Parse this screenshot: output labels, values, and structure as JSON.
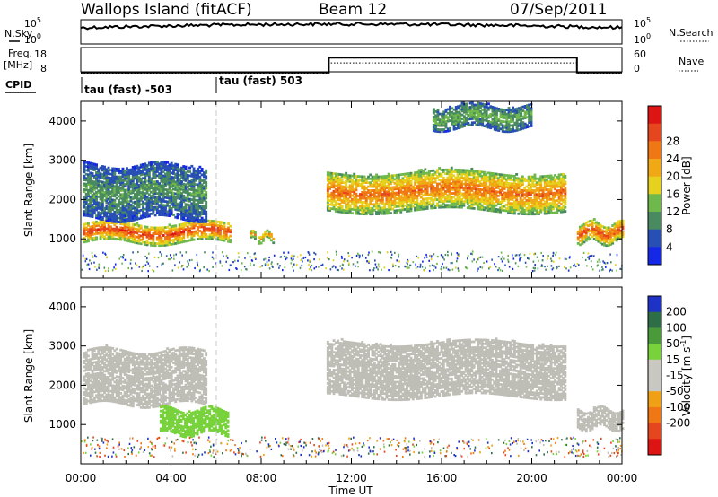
{
  "header": {
    "title": "Wallops Island (fitACF)",
    "beam": "Beam 12",
    "date": "07/Sep/2011"
  },
  "status_panels": {
    "nsky_label": "N.Sky",
    "nsearch_label": "N.Search",
    "noise_ticks": [
      "10^5",
      "10^0"
    ],
    "freq_label_line1": "Freq.",
    "freq_label_line2": "[MHz]",
    "freq_ticks": [
      "18",
      "8"
    ],
    "nave_label": "Nave",
    "nave_ticks": [
      "60",
      "0"
    ],
    "cpid_label": "CPID",
    "cpid_segments": [
      {
        "label": "tau (fast) -503",
        "start_hour": 0
      },
      {
        "label": "tau (fast) 503",
        "start_hour": 6
      }
    ]
  },
  "chart_data": [
    {
      "type": "heatmap",
      "panel": "power",
      "ylabel": "Slant Range [km]",
      "xlabel": "Time UT",
      "xlim_hours": [
        0,
        24
      ],
      "x_tick_labels": [
        "00:00",
        "04:00",
        "08:00",
        "12:00",
        "16:00",
        "20:00",
        "00:00"
      ],
      "ylim_km": [
        0,
        4500
      ],
      "y_ticks": [
        1000,
        2000,
        3000,
        4000
      ],
      "colorbar": {
        "label": "Power [dB]",
        "ticks": [
          "4",
          "8",
          "12",
          "16",
          "20",
          "24",
          "28"
        ],
        "colors": [
          "#1428e6",
          "#2850b4",
          "#4a8a60",
          "#6fb84c",
          "#e6d21e",
          "#f0a814",
          "#f07814",
          "#e6461e",
          "#dc1414"
        ]
      },
      "echo_regions": [
        {
          "t_start": 0.1,
          "t_end": 6.6,
          "range_km": [
            900,
            1400
          ],
          "power_db": 27
        },
        {
          "t_start": 7.5,
          "t_end": 8.5,
          "range_km": [
            950,
            1150
          ],
          "power_db": 22
        },
        {
          "t_start": 0.1,
          "t_end": 5.5,
          "range_km": [
            1500,
            2900
          ],
          "power_db": 10
        },
        {
          "t_start": 10.9,
          "t_end": 21.5,
          "range_km": [
            1700,
            2700
          ],
          "power_db": 24
        },
        {
          "t_start": 15.6,
          "t_end": 20.0,
          "range_km": [
            3800,
            4400
          ],
          "power_db": 12
        },
        {
          "t_start": 22.0,
          "t_end": 24.0,
          "range_km": [
            900,
            1400
          ],
          "power_db": 26
        }
      ]
    },
    {
      "type": "heatmap",
      "panel": "velocity",
      "ylabel": "Slant Range [km]",
      "xlabel": "Time UT",
      "xlim_hours": [
        0,
        24
      ],
      "x_tick_labels": [
        "00:00",
        "04:00",
        "08:00",
        "12:00",
        "16:00",
        "20:00",
        "00:00"
      ],
      "ylim_km": [
        0,
        4500
      ],
      "y_ticks": [
        1000,
        2000,
        3000,
        4000
      ],
      "colorbar": {
        "label": "Velocity [m s^-1]",
        "ticks": [
          "200",
          "100",
          "50",
          "15",
          "-15",
          "-50",
          "-100",
          "-200"
        ],
        "colors": [
          "#1e32c8",
          "#2e6e46",
          "#4a9a3c",
          "#78d23c",
          "#c8c8c0",
          "#c8c8c0",
          "#f0a014",
          "#f07814",
          "#e6461e",
          "#dc1414"
        ]
      },
      "ground_scatter_color": "#bebeb6",
      "echo_regions": [
        {
          "t_start": 0.1,
          "t_end": 5.5,
          "range_km": [
            1500,
            2900
          ],
          "velocity": 0
        },
        {
          "t_start": 3.5,
          "t_end": 6.5,
          "range_km": [
            750,
            1400
          ],
          "velocity": 35
        },
        {
          "t_start": 10.9,
          "t_end": 21.5,
          "range_km": [
            1700,
            3100
          ],
          "velocity": 0
        },
        {
          "t_start": 22.0,
          "t_end": 24.0,
          "range_km": [
            900,
            1400
          ],
          "velocity": 0
        }
      ]
    }
  ]
}
